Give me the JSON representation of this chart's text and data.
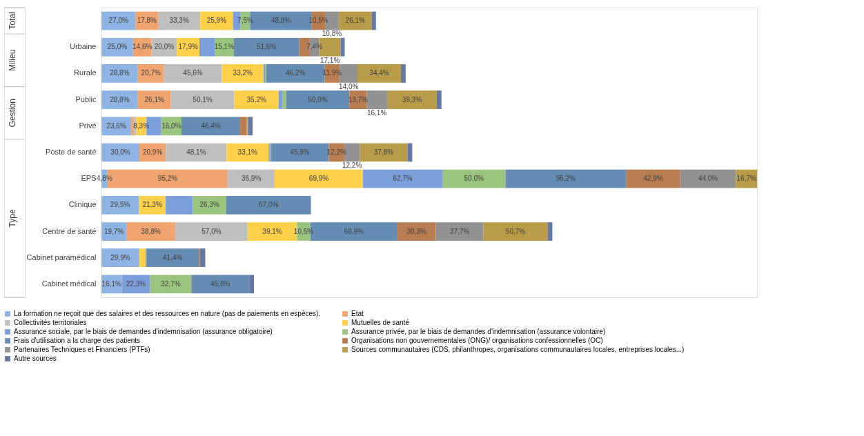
{
  "chart_data": {
    "type": "bar",
    "orientation": "horizontal",
    "stacked": true,
    "legend": "bottom",
    "annotations": [
      "Total",
      "Milieu",
      "Gestion",
      "Type"
    ],
    "categories": [
      null,
      "Urbaine",
      "Rurale",
      "Public",
      "Privé",
      "Poste de santé",
      "EPS",
      "Clinique",
      "Centre de santé",
      "Cabinet paramédical",
      "Cabinet médical"
    ],
    "series": [
      {
        "name": "La formation ne reçoit que des salaires et des ressources en nature (pas de paiements en espèces).",
        "color": "#8db4e2",
        "values": [
          27.0,
          25.0,
          28.8,
          28.8,
          23.6,
          30.0,
          4.8,
          29.5,
          19.7,
          29.9,
          16.1
        ],
        "value_labels": [
          "27,0%",
          "25,0%",
          "28,8%",
          "28,8%",
          "23,6%",
          "30,0%",
          "4,8%",
          "29,5%",
          "19,7%",
          "29,9%",
          "16,1%"
        ]
      },
      {
        "name": "Etat",
        "color": "#f0a46f",
        "values": [
          17.8,
          14.6,
          20.7,
          26.1,
          2.2,
          20.9,
          95.2,
          null,
          38.8,
          null,
          null
        ],
        "value_labels": [
          "17,8%",
          "14,6%",
          "20,7%",
          "26,1%",
          null,
          "20,9%",
          "95,2%",
          null,
          "38,8%",
          null,
          null
        ]
      },
      {
        "name": "Collectivités territoriales",
        "color": "#bfbfbf",
        "values": [
          33.3,
          20.0,
          45.6,
          50.1,
          1.5,
          48.1,
          36.9,
          null,
          57.0,
          null,
          null
        ],
        "value_labels": [
          "33,3%",
          "20,0%",
          "45,6%",
          "50,1%",
          null,
          "48,1%",
          "36,9%",
          null,
          "57,0%",
          null,
          null
        ]
      },
      {
        "name": "Mutuelles de santé",
        "color": "#ffd04a",
        "values": [
          25.9,
          17.9,
          33.2,
          35.2,
          8.3,
          33.1,
          69.9,
          21.3,
          39.1,
          5.0,
          null
        ],
        "value_labels": [
          "25,9%",
          "17,9%",
          "33,2%",
          "35,2%",
          "8,3%",
          "33,1%",
          "69,9%",
          "21,3%",
          "39,1%",
          null,
          null
        ]
      },
      {
        "name": "Assurance sociale, par le biais de demandes d'indemnisation (assurance obligatoire)",
        "color": "#7b9fdb",
        "values": [
          6.0,
          12.0,
          1.0,
          2.7,
          11.7,
          0.9,
          62.7,
          21.5,
          null,
          0.7,
          22.3
        ],
        "value_labels": [
          null,
          null,
          null,
          null,
          null,
          null,
          "62,7%",
          null,
          null,
          null,
          "22,3%"
        ]
      },
      {
        "name": "Assurance privée, par le biais de demandes d'indemnisation (assurance volontaire)",
        "color": "#9bc47f",
        "values": [
          7.5,
          15.1,
          1.0,
          3.1,
          16.0,
          0.9,
          50.0,
          26.3,
          10.5,
          null,
          32.7
        ],
        "value_labels": [
          "7,5%",
          "15,1%",
          null,
          null,
          "16,0%",
          null,
          "50,0%",
          "26,3%",
          "10,5%",
          null,
          "32,7%"
        ]
      },
      {
        "name": "Frais d'utilisation a la charge des patients",
        "color": "#658db4",
        "values": [
          48.8,
          51.6,
          46.2,
          50.0,
          46.4,
          45.9,
          95.2,
          67.0,
          68.9,
          41.4,
          45.8
        ],
        "value_labels": [
          "48,8%",
          "51,6%",
          "46,2%",
          "50,0%",
          "46,4%",
          "45,9%",
          "95,2%",
          "67,0%",
          "68,9%",
          "41,4%",
          "45,8%"
        ]
      },
      {
        "name": "Organisations non gouvernementales (ONG)/ organisations confessionnelles (OC)",
        "color": "#b97d52",
        "values": [
          10.5,
          8.5,
          11.9,
          13.7,
          5.1,
          12.2,
          42.9,
          null,
          30.3,
          0.7,
          null
        ],
        "value_labels": [
          "10,5%",
          null,
          "11,9%",
          "13,7%",
          null,
          "12,2%",
          "42,9%",
          null,
          "30,3%",
          null,
          null
        ]
      },
      {
        "name": "Partenaires Techniques et Financiers (PTFs)",
        "color": "#929292",
        "values": [
          10.8,
          7.4,
          14.0,
          16.1,
          0.5,
          12.2,
          44.0,
          null,
          37.7,
          null,
          null
        ],
        "value_labels": [
          "10,8%",
          "7,4%",
          "14,0%",
          "16,1%",
          null,
          "12,2%",
          "44,0%",
          null,
          "37,7%",
          null,
          null
        ]
      },
      {
        "name": "Sources communautaires (CDS, philanthropes, organisations communautaires locales, entreprises locales...)",
        "color": "#b89c4a",
        "values": [
          26.1,
          17.1,
          34.4,
          39.3,
          0.9,
          37.8,
          16.7,
          null,
          50.7,
          null,
          null
        ],
        "value_labels": [
          "26,1%",
          "17,1%",
          "34,4%",
          "39,3%",
          null,
          "37,8%",
          "16,7%",
          null,
          "50,7%",
          null,
          null
        ]
      },
      {
        "name": "Autre sources",
        "color": "#6379a3",
        "values": [
          3.3,
          3.1,
          3.7,
          3.7,
          3.3,
          3.7,
          null,
          null,
          3.8,
          4.4,
          3.7
        ]
      }
    ]
  }
}
